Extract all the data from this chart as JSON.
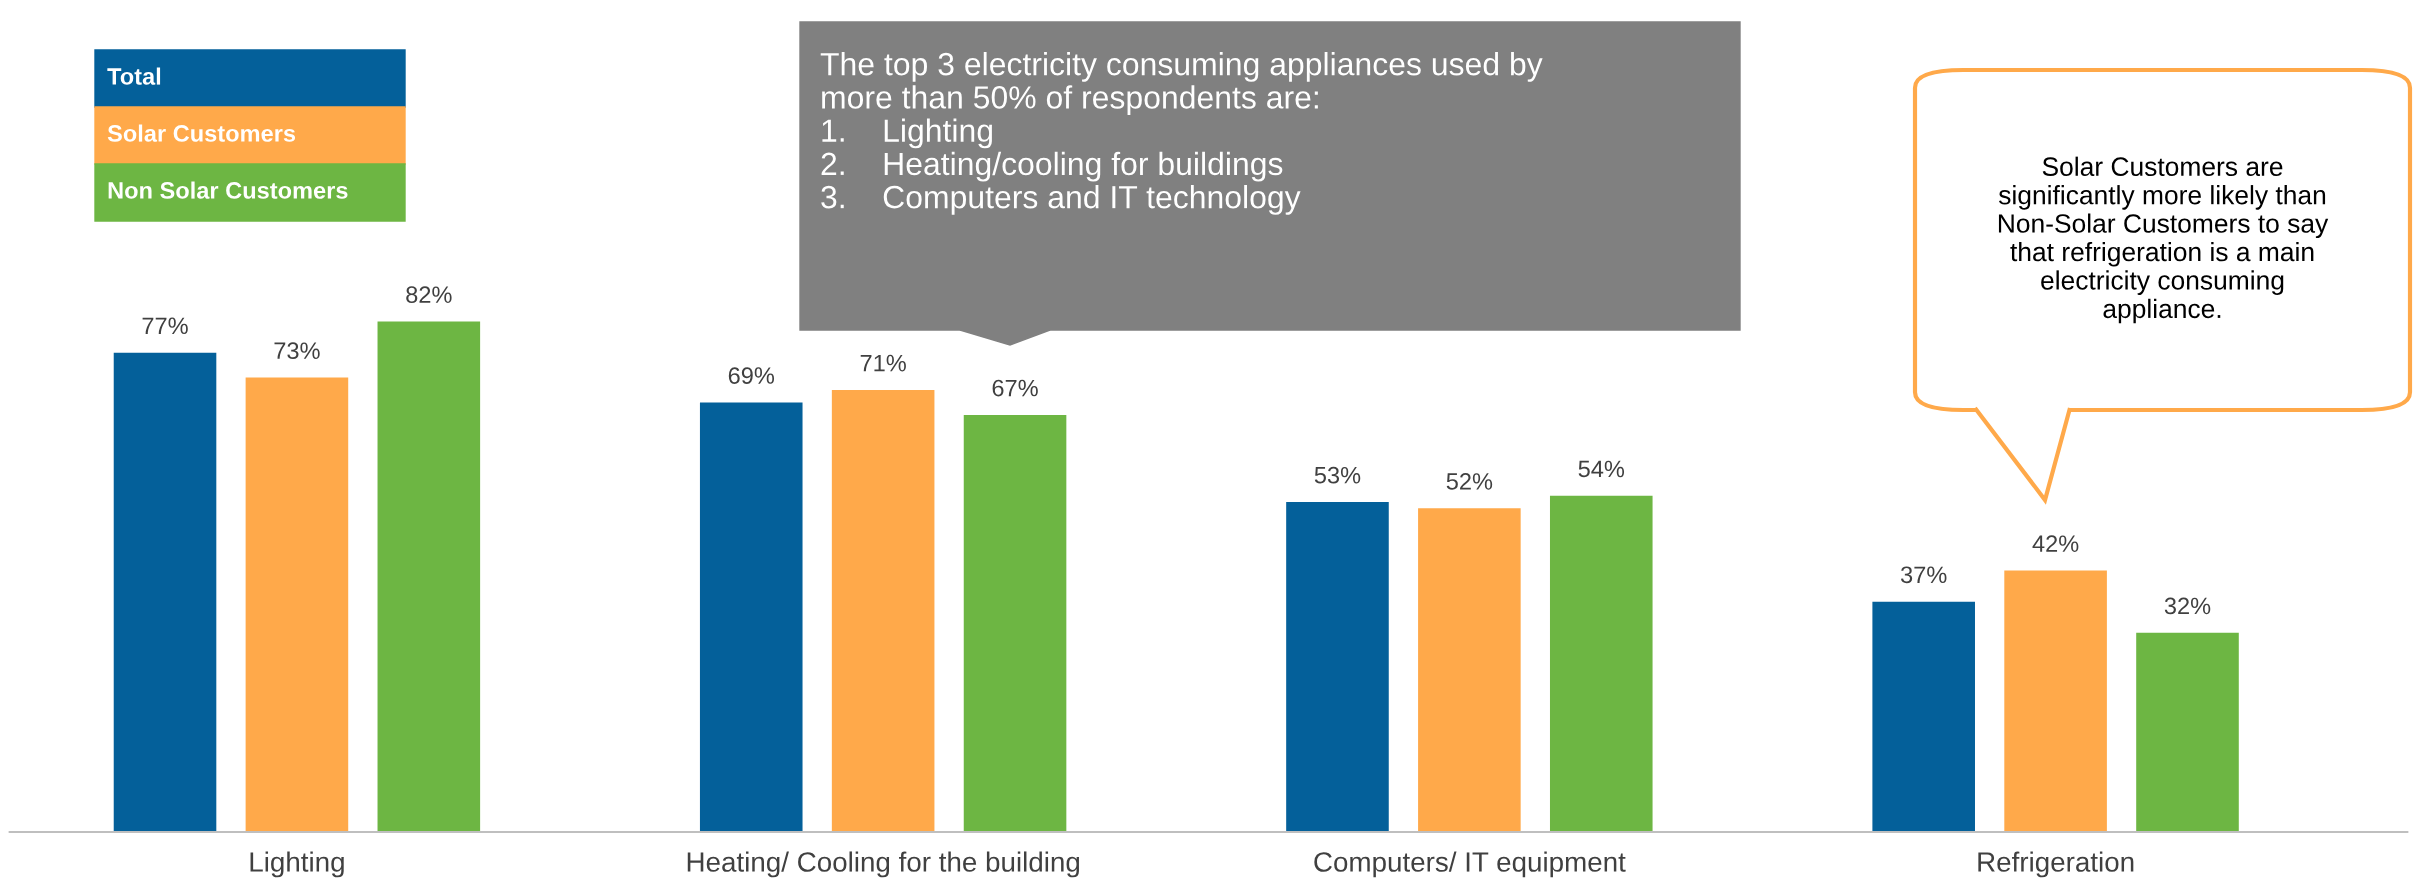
{
  "chart_data": {
    "type": "bar",
    "categories": [
      "Lighting",
      "Heating/ Cooling for the building",
      "Computers/ IT equipment",
      "Refrigeration"
    ],
    "series": [
      {
        "name": "Total",
        "color": "#04609a",
        "values": [
          77,
          69,
          53,
          37
        ],
        "value_labels": [
          "77%",
          "69%",
          "53%",
          "37%"
        ]
      },
      {
        "name": "Solar Customers",
        "color": "#ffa94a",
        "values": [
          73,
          71,
          52,
          42
        ],
        "value_labels": [
          "73%",
          "71%",
          "52%",
          "42%"
        ]
      },
      {
        "name": "Non Solar Customers",
        "color": "#6db643",
        "values": [
          82,
          67,
          54,
          32
        ],
        "value_labels": [
          "82%",
          "67%",
          "54%",
          "32%"
        ]
      }
    ],
    "legend": "top left",
    "grid": false,
    "annotations": [
      "The top 3 electricity consuming appliances used by\nmore than 50% of respondents are:\n1.    Lighting\n2.    Heating/cooling for buildings\n3.    Computers and IT technology",
      "Solar Customers are\nsignificantly more likely than\nNon-Solar Customers to say\nthat refrigeration is a main\nelectricity consuming\nappliance."
    ]
  }
}
